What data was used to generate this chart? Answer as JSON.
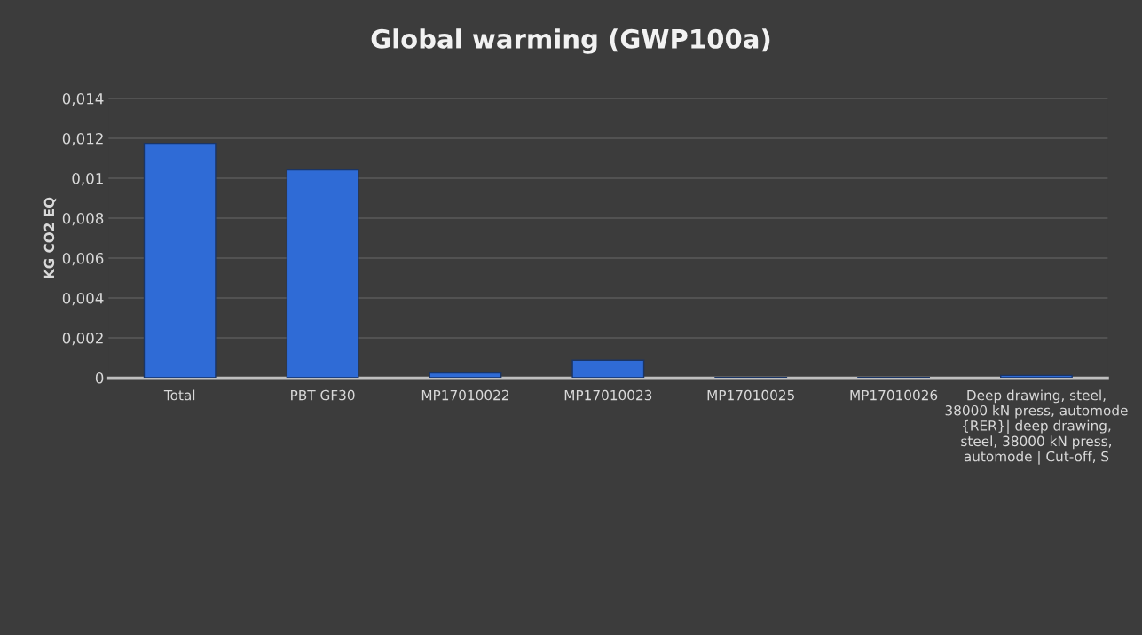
{
  "chart_data": {
    "type": "bar",
    "title": "Global warming (GWP100a)",
    "ylabel": "KG CO2 EQ",
    "categories": [
      "Total",
      "PBT GF30",
      "MP17010022",
      "MP17010023",
      "MP17010025",
      "MP17010026",
      "Deep drawing, steel, 38000 kN press, automode {RER}| deep drawing, steel, 38000 kN press, automode | Cut-off, S"
    ],
    "values": [
      0.01175,
      0.01042,
      0.00024,
      0.00088,
      2e-05,
      2e-05,
      0.00012
    ],
    "color": "#2f6bd6",
    "ylim": [
      0,
      0.014
    ],
    "yticks": [
      {
        "value": 0,
        "label": "0"
      },
      {
        "value": 0.002,
        "label": "0,002"
      },
      {
        "value": 0.004,
        "label": "0,004"
      },
      {
        "value": 0.006,
        "label": "0,006"
      },
      {
        "value": 0.008,
        "label": "0,008"
      },
      {
        "value": 0.01,
        "label": "0,01"
      },
      {
        "value": 0.012,
        "label": "0,012"
      },
      {
        "value": 0.014,
        "label": "0,014"
      }
    ],
    "grid": "y",
    "legend": false
  }
}
